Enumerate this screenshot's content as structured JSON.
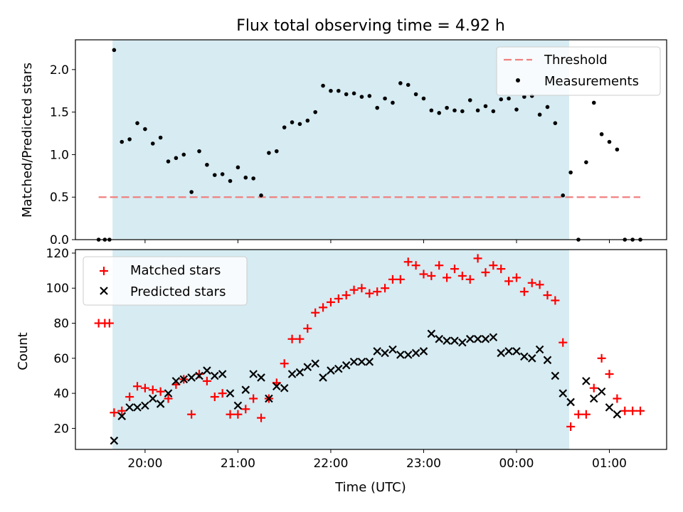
{
  "chart_data": {
    "title": "Flux total observing time = 4.92 h",
    "xlabel": "Time (UTC)",
    "x_unit": "hours (UTC, continuing past midnight)",
    "xlim": [
      "19:15",
      "01:37"
    ],
    "xticks": [
      {
        "t": "20:00",
        "label": "20:00"
      },
      {
        "t": "21:00",
        "label": "21:00"
      },
      {
        "t": "22:00",
        "label": "22:00"
      },
      {
        "t": "23:00",
        "label": "23:00"
      },
      {
        "t": "00:00",
        "label": "00:00"
      },
      {
        "t": "01:00",
        "label": "01:00"
      }
    ],
    "observing_window": {
      "start": "19:39",
      "end": "00:34",
      "color": "#add8e6"
    },
    "panels": [
      {
        "type": "scatter",
        "ylabel": "Matched/Predicted stars",
        "ylim": [
          0,
          2.35
        ],
        "yticks": [
          0.0,
          0.5,
          1.0,
          1.5,
          2.0
        ],
        "ytick_labels": [
          "0.0",
          "0.5",
          "1.0",
          "1.5",
          "2.0"
        ],
        "legend_position": "upper right",
        "threshold": {
          "name": "Threshold",
          "value": 0.5,
          "x_from": "19:30",
          "x_to": "01:20",
          "color": "#f08080"
        },
        "series": [
          {
            "name": "Measurements",
            "color": "#000000",
            "marker": "dot",
            "x": [
              "19:30",
              "19:34",
              "19:37",
              "19:40",
              "19:45",
              "19:50",
              "19:55",
              "20:00",
              "20:05",
              "20:10",
              "20:15",
              "20:20",
              "20:25",
              "20:30",
              "20:35",
              "20:40",
              "20:45",
              "20:50",
              "20:55",
              "21:00",
              "21:05",
              "21:10",
              "21:15",
              "21:20",
              "21:25",
              "21:30",
              "21:35",
              "21:40",
              "21:45",
              "21:50",
              "21:55",
              "22:00",
              "22:05",
              "22:10",
              "22:15",
              "22:20",
              "22:25",
              "22:30",
              "22:35",
              "22:40",
              "22:45",
              "22:50",
              "22:55",
              "23:00",
              "23:05",
              "23:10",
              "23:15",
              "23:20",
              "23:25",
              "23:30",
              "23:35",
              "23:40",
              "23:45",
              "23:50",
              "23:55",
              "00:00",
              "00:05",
              "00:10",
              "00:15",
              "00:20",
              "00:25",
              "00:30",
              "00:35",
              "00:40",
              "00:45",
              "00:50",
              "00:55",
              "01:00",
              "01:05",
              "01:10",
              "01:15",
              "01:20"
            ],
            "y": [
              0.0,
              0.0,
              0.0,
              2.23,
              1.15,
              1.18,
              1.37,
              1.3,
              1.13,
              1.2,
              0.92,
              0.96,
              1.0,
              0.56,
              1.04,
              0.88,
              0.76,
              0.77,
              0.69,
              0.85,
              0.73,
              0.72,
              0.52,
              1.02,
              1.04,
              1.32,
              1.38,
              1.36,
              1.4,
              1.5,
              1.81,
              1.75,
              1.75,
              1.71,
              1.72,
              1.68,
              1.69,
              1.55,
              1.66,
              1.61,
              1.84,
              1.82,
              1.71,
              1.66,
              1.52,
              1.49,
              1.55,
              1.52,
              1.51,
              1.64,
              1.52,
              1.57,
              1.51,
              1.65,
              1.66,
              1.53,
              1.68,
              1.69,
              1.47,
              1.56,
              1.37,
              0.52,
              0.79,
              0.0,
              0.91,
              1.61,
              1.24,
              1.15,
              1.06,
              0.0,
              0.0,
              0.0
            ]
          }
        ]
      },
      {
        "type": "scatter",
        "ylabel": "Count",
        "ylim": [
          8,
          122
        ],
        "yticks": [
          20,
          40,
          60,
          80,
          100,
          120
        ],
        "ytick_labels": [
          "20",
          "40",
          "60",
          "80",
          "100",
          "120"
        ],
        "legend_position": "upper left",
        "series": [
          {
            "name": "Matched stars",
            "color": "#ff0000",
            "marker": "plus",
            "x": [
              "19:30",
              "19:34",
              "19:37",
              "19:40",
              "19:45",
              "19:50",
              "19:55",
              "20:00",
              "20:05",
              "20:10",
              "20:15",
              "20:20",
              "20:25",
              "20:30",
              "20:35",
              "20:40",
              "20:45",
              "20:50",
              "20:55",
              "21:00",
              "21:05",
              "21:10",
              "21:15",
              "21:20",
              "21:25",
              "21:30",
              "21:35",
              "21:40",
              "21:45",
              "21:50",
              "21:55",
              "22:00",
              "22:05",
              "22:10",
              "22:15",
              "22:20",
              "22:25",
              "22:30",
              "22:35",
              "22:40",
              "22:45",
              "22:50",
              "22:55",
              "23:00",
              "23:05",
              "23:10",
              "23:15",
              "23:20",
              "23:25",
              "23:30",
              "23:35",
              "23:40",
              "23:45",
              "23:50",
              "23:55",
              "00:00",
              "00:05",
              "00:10",
              "00:15",
              "00:20",
              "00:25",
              "00:30",
              "00:35",
              "00:40",
              "00:45",
              "00:50",
              "00:55",
              "01:00",
              "01:05",
              "01:10",
              "01:15",
              "01:20"
            ],
            "y": [
              80,
              80,
              80,
              29,
              30,
              38,
              44,
              43,
              42,
              41,
              37,
              45,
              48,
              28,
              51,
              47,
              38,
              40,
              28,
              28,
              31,
              37,
              26,
              37,
              46,
              57,
              71,
              71,
              77,
              86,
              89,
              92,
              94,
              96,
              99,
              100,
              97,
              98,
              100,
              105,
              105,
              115,
              113,
              108,
              107,
              113,
              106,
              111,
              107,
              105,
              117,
              109,
              113,
              111,
              104,
              106,
              98,
              103,
              102,
              96,
              93,
              69,
              21,
              28,
              28,
              43,
              60,
              51,
              37,
              30,
              30,
              30
            ]
          },
          {
            "name": "Predicted stars",
            "color": "#000000",
            "marker": "x",
            "x": [
              "19:40",
              "19:45",
              "19:50",
              "19:55",
              "20:00",
              "20:05",
              "20:10",
              "20:15",
              "20:20",
              "20:25",
              "20:30",
              "20:35",
              "20:40",
              "20:45",
              "20:50",
              "20:55",
              "21:00",
              "21:05",
              "21:10",
              "21:15",
              "21:20",
              "21:25",
              "21:30",
              "21:35",
              "21:40",
              "21:45",
              "21:50",
              "21:55",
              "22:00",
              "22:05",
              "22:10",
              "22:15",
              "22:20",
              "22:25",
              "22:30",
              "22:35",
              "22:40",
              "22:45",
              "22:50",
              "22:55",
              "23:00",
              "23:05",
              "23:10",
              "23:15",
              "23:20",
              "23:25",
              "23:30",
              "23:35",
              "23:40",
              "23:45",
              "23:50",
              "23:55",
              "00:00",
              "00:05",
              "00:10",
              "00:15",
              "00:20",
              "00:25",
              "00:30",
              "00:35",
              "00:40",
              "00:45",
              "00:50",
              "00:55",
              "01:00",
              "01:05"
            ],
            "y": [
              13,
              27,
              32,
              32,
              33,
              37,
              34,
              40,
              47,
              48,
              49,
              50,
              53,
              50,
              51,
              40,
              33,
              42,
              51,
              49,
              37,
              44,
              43,
              51,
              52,
              55,
              57,
              49,
              53,
              54,
              56,
              58,
              58,
              58,
              64,
              63,
              65,
              62,
              62,
              63,
              64,
              74,
              71,
              70,
              70,
              69,
              71,
              71,
              71,
              72,
              63,
              64,
              64,
              61,
              60,
              65,
              59,
              50,
              40,
              35,
              null,
              47,
              37,
              41,
              32,
              28
            ]
          }
        ]
      }
    ]
  }
}
